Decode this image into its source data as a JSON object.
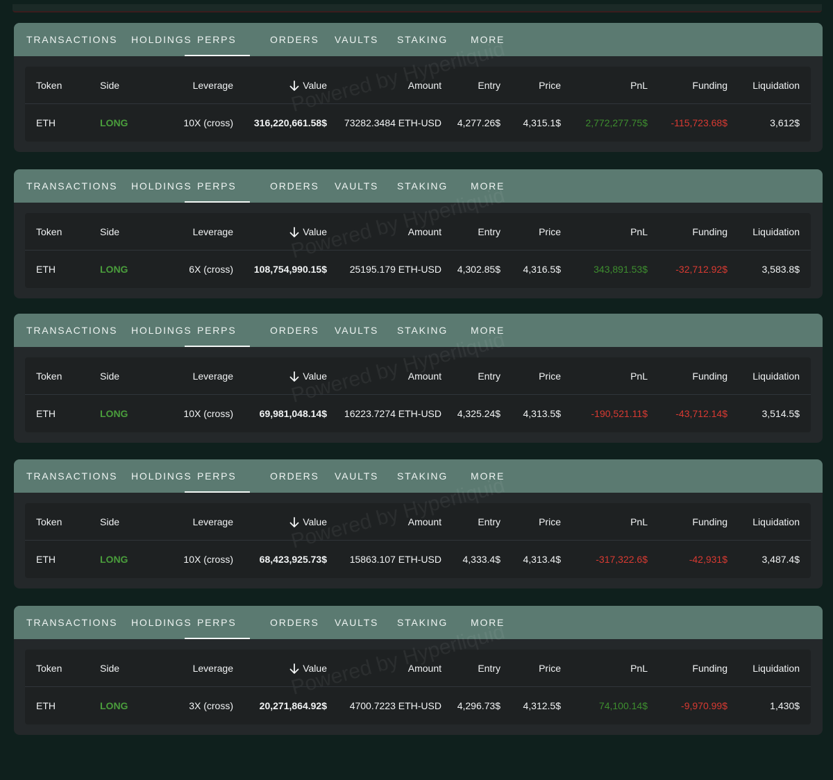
{
  "tabs": [
    "TRANSACTIONS",
    "HOLDINGS",
    "PERPS",
    "ORDERS",
    "VAULTS",
    "STAKING",
    "MORE"
  ],
  "active_tab": "PERPS",
  "columns": [
    "Token",
    "Side",
    "Leverage",
    "Value",
    "Amount",
    "Entry",
    "Price",
    "PnL",
    "Funding",
    "Liquidation"
  ],
  "sort": {
    "column": "Value",
    "direction": "descending",
    "icon": "arrow-down-icon"
  },
  "watermark": "Powered by Hyperliquid",
  "colors": {
    "background": "#0f201d",
    "tab_bar": "#5b7a71",
    "panel": "#24282a",
    "long": "#4a9d3c",
    "profit": "#3e8e2f",
    "loss": "#d93a32"
  },
  "positions": [
    {
      "token": "ETH",
      "side": "LONG",
      "leverage": "10X (cross)",
      "value": "316,220,661.58$",
      "amount": "73282.3484 ETH-USD",
      "entry": "4,277.26$",
      "price": "4,315.1$",
      "pnl": "2,772,277.75$",
      "pnl_sign": "positive",
      "funding": "-115,723.68$",
      "liquidation": "3,612$"
    },
    {
      "token": "ETH",
      "side": "LONG",
      "leverage": "6X (cross)",
      "value": "108,754,990.15$",
      "amount": "25195.179 ETH-USD",
      "entry": "4,302.85$",
      "price": "4,316.5$",
      "pnl": "343,891.53$",
      "pnl_sign": "positive",
      "funding": "-32,712.92$",
      "liquidation": "3,583.8$"
    },
    {
      "token": "ETH",
      "side": "LONG",
      "leverage": "10X (cross)",
      "value": "69,981,048.14$",
      "amount": "16223.7274 ETH-USD",
      "entry": "4,325.24$",
      "price": "4,313.5$",
      "pnl": "-190,521.11$",
      "pnl_sign": "negative",
      "funding": "-43,712.14$",
      "liquidation": "3,514.5$"
    },
    {
      "token": "ETH",
      "side": "LONG",
      "leverage": "10X (cross)",
      "value": "68,423,925.73$",
      "amount": "15863.107 ETH-USD",
      "entry": "4,333.4$",
      "price": "4,313.4$",
      "pnl": "-317,322.6$",
      "pnl_sign": "negative",
      "funding": "-42,931$",
      "liquidation": "3,487.4$"
    },
    {
      "token": "ETH",
      "side": "LONG",
      "leverage": "3X (cross)",
      "value": "20,271,864.92$",
      "amount": "4700.7223 ETH-USD",
      "entry": "4,296.73$",
      "price": "4,312.5$",
      "pnl": "74,100.14$",
      "pnl_sign": "positive",
      "funding": "-9,970.99$",
      "liquidation": "1,430$"
    }
  ]
}
